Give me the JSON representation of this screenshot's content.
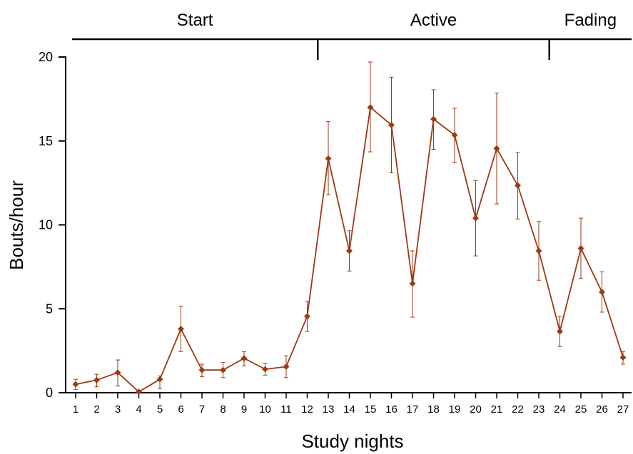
{
  "chart_data": {
    "type": "line",
    "xlabel": "Study nights",
    "ylabel": "Bouts/hour",
    "ylim": [
      0,
      20
    ],
    "yticks": [
      0,
      5,
      10,
      15,
      20
    ],
    "grid": false,
    "color": "#9b3a12",
    "x": [
      1,
      2,
      3,
      4,
      5,
      6,
      7,
      8,
      9,
      10,
      11,
      12,
      13,
      14,
      15,
      16,
      17,
      18,
      19,
      20,
      21,
      22,
      23,
      24,
      25,
      26,
      27
    ],
    "xtick_labels": [
      "1",
      "2",
      "3",
      "4",
      "5",
      "6",
      "7",
      "8",
      "9",
      "10",
      "11",
      "12",
      "13",
      "14",
      "15",
      "16",
      "17",
      "18",
      "19",
      "20",
      "21",
      "22",
      "23",
      "24",
      "25",
      "26",
      "27"
    ],
    "series": [
      {
        "values": [
          0.5,
          0.75,
          1.2,
          0.05,
          0.8,
          3.8,
          1.35,
          1.35,
          2.05,
          1.4,
          1.55,
          4.55,
          13.95,
          8.45,
          17.0,
          15.95,
          6.5,
          16.3,
          15.35,
          10.4,
          14.55,
          12.35,
          8.45,
          3.65,
          8.6,
          6.0,
          2.1
        ],
        "error_low": [
          0.2,
          0.35,
          0.4,
          0.05,
          0.25,
          2.45,
          0.95,
          0.9,
          1.6,
          1.05,
          0.9,
          3.65,
          11.8,
          7.25,
          14.35,
          13.1,
          4.5,
          14.5,
          13.7,
          8.15,
          11.25,
          10.35,
          6.7,
          2.75,
          6.8,
          4.8,
          1.7
        ],
        "error_high": [
          0.8,
          1.1,
          1.95,
          0.1,
          1.0,
          5.15,
          1.7,
          1.8,
          2.45,
          1.75,
          2.2,
          5.45,
          16.15,
          9.65,
          19.7,
          18.8,
          8.45,
          18.05,
          16.95,
          12.65,
          17.85,
          14.3,
          10.2,
          4.55,
          10.4,
          7.2,
          2.45
        ]
      }
    ],
    "phases": [
      {
        "label": "Start",
        "from": 0.5,
        "to": 12.5
      },
      {
        "label": "Active",
        "from": 12.5,
        "to": 23.5
      },
      {
        "label": "Fading",
        "from": 23.5,
        "to": 27.5
      }
    ]
  }
}
